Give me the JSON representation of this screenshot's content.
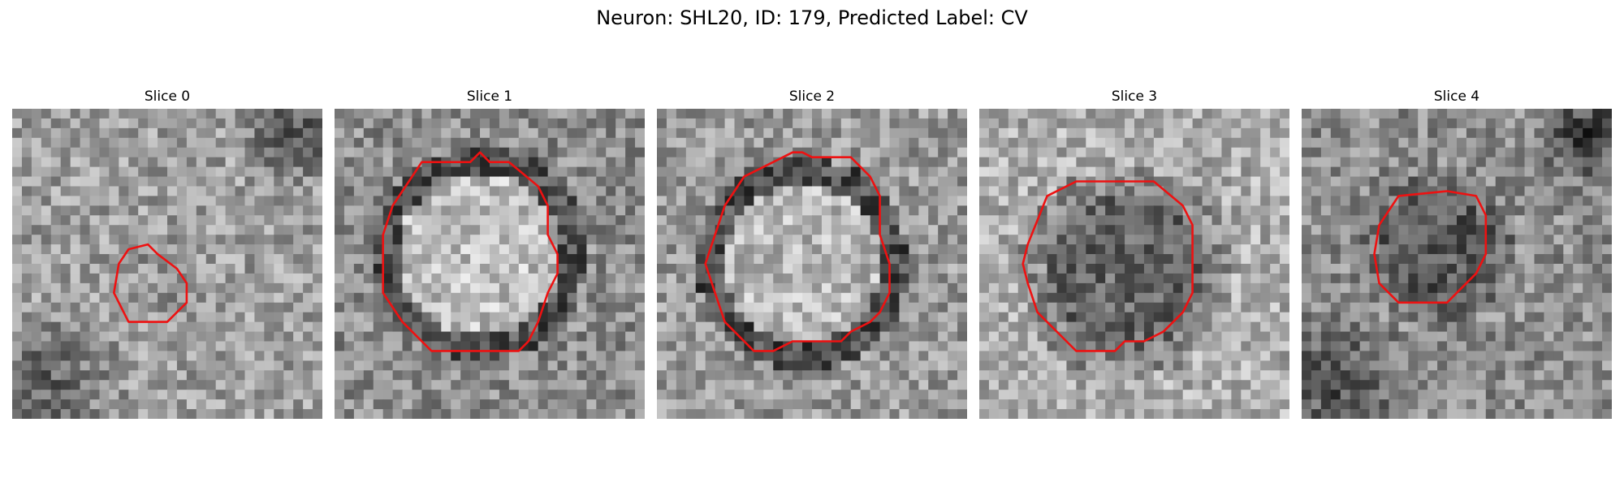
{
  "figure": {
    "title": "Neuron: SHL20, ID: 179, Predicted Label: CV"
  },
  "colors": {
    "contour": "#ee1111",
    "background": "#ffffff",
    "colormap": "grayscale"
  },
  "panels": [
    {
      "title": "Slice 0"
    },
    {
      "title": "Slice 1"
    },
    {
      "title": "Slice 2"
    },
    {
      "title": "Slice 3"
    },
    {
      "title": "Slice 4"
    }
  ]
}
